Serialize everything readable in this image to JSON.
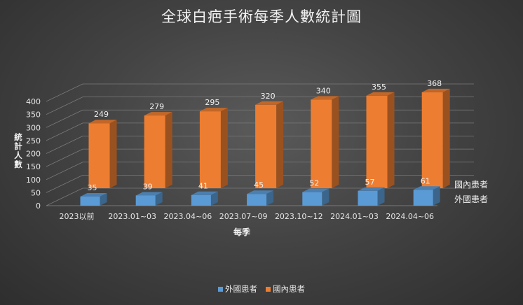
{
  "chart_data": {
    "type": "bar",
    "variant": "3d-column-series-depth",
    "title": "全球白疤手術每季人數統計圖",
    "xlabel": "每季",
    "ylabel": "統計人數",
    "categories": [
      "2023以前",
      "2023.01~03",
      "2023.04~06",
      "2023.07~09",
      "2023.10~12",
      "2024.01~03",
      "2024.04~06"
    ],
    "series": [
      {
        "name": "外國患者",
        "values": [
          35,
          39,
          41,
          45,
          52,
          57,
          61
        ],
        "color": "#5b9bd5"
      },
      {
        "name": "國內患者",
        "values": [
          249,
          279,
          295,
          320,
          340,
          355,
          368
        ],
        "color": "#ed7d31"
      }
    ],
    "yticks": [
      0,
      50,
      100,
      150,
      200,
      250,
      300,
      350,
      400
    ],
    "ylim": [
      0,
      400
    ],
    "grid": true,
    "data_labels": true,
    "legend_position": "bottom",
    "series_axis_labels": true
  }
}
